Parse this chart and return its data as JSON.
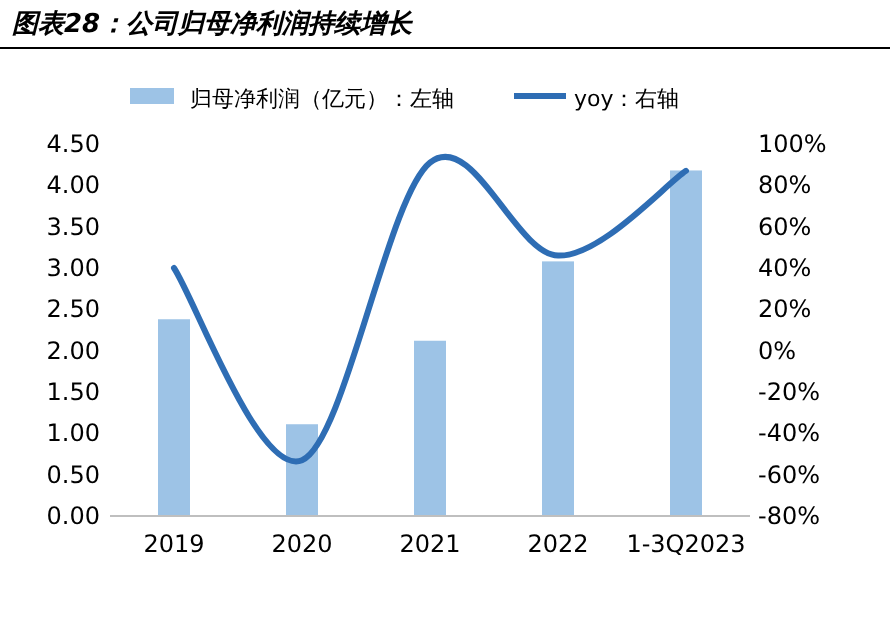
{
  "chart_data": {
    "type": "bar",
    "title": "图表28：公司归母净利润持续增长",
    "categories": [
      "2019",
      "2020",
      "2021",
      "2022",
      "1-3Q2023"
    ],
    "series": [
      {
        "name": "归母净利润（亿元）：左轴",
        "color": "#9dc3e6",
        "values": [
          2.38,
          1.11,
          2.12,
          3.08,
          4.18
        ]
      },
      {
        "name": "yoy：右轴",
        "type": "line",
        "axis": "y2",
        "color": "#2e6db4",
        "values": [
          40,
          -53,
          91,
          46,
          87
        ]
      }
    ],
    "ylim": [
      0,
      4.5
    ],
    "yticks": [
      {
        "value": 0,
        "label": "0.00"
      },
      {
        "value": 0.5,
        "label": "0.50"
      },
      {
        "value": 1,
        "label": "1.00"
      },
      {
        "value": 1.5,
        "label": "1.50"
      },
      {
        "value": 2,
        "label": "2.00"
      },
      {
        "value": 2.5,
        "label": "2.50"
      },
      {
        "value": 3,
        "label": "3.00"
      },
      {
        "value": 3.5,
        "label": "3.50"
      },
      {
        "value": 4,
        "label": "4.00"
      },
      {
        "value": 4.5,
        "label": "4.50"
      }
    ],
    "y2lim": [
      -80,
      100
    ],
    "y2ticks": [
      {
        "value": -80,
        "label": "-80%"
      },
      {
        "value": -60,
        "label": "-60%"
      },
      {
        "value": -40,
        "label": "-40%"
      },
      {
        "value": -20,
        "label": "-20%"
      },
      {
        "value": 0,
        "label": "0%"
      },
      {
        "value": 20,
        "label": "20%"
      },
      {
        "value": 40,
        "label": "40%"
      },
      {
        "value": 60,
        "label": "60%"
      },
      {
        "value": 80,
        "label": "80%"
      },
      {
        "value": 100,
        "label": "100%"
      }
    ],
    "legend": "top"
  }
}
